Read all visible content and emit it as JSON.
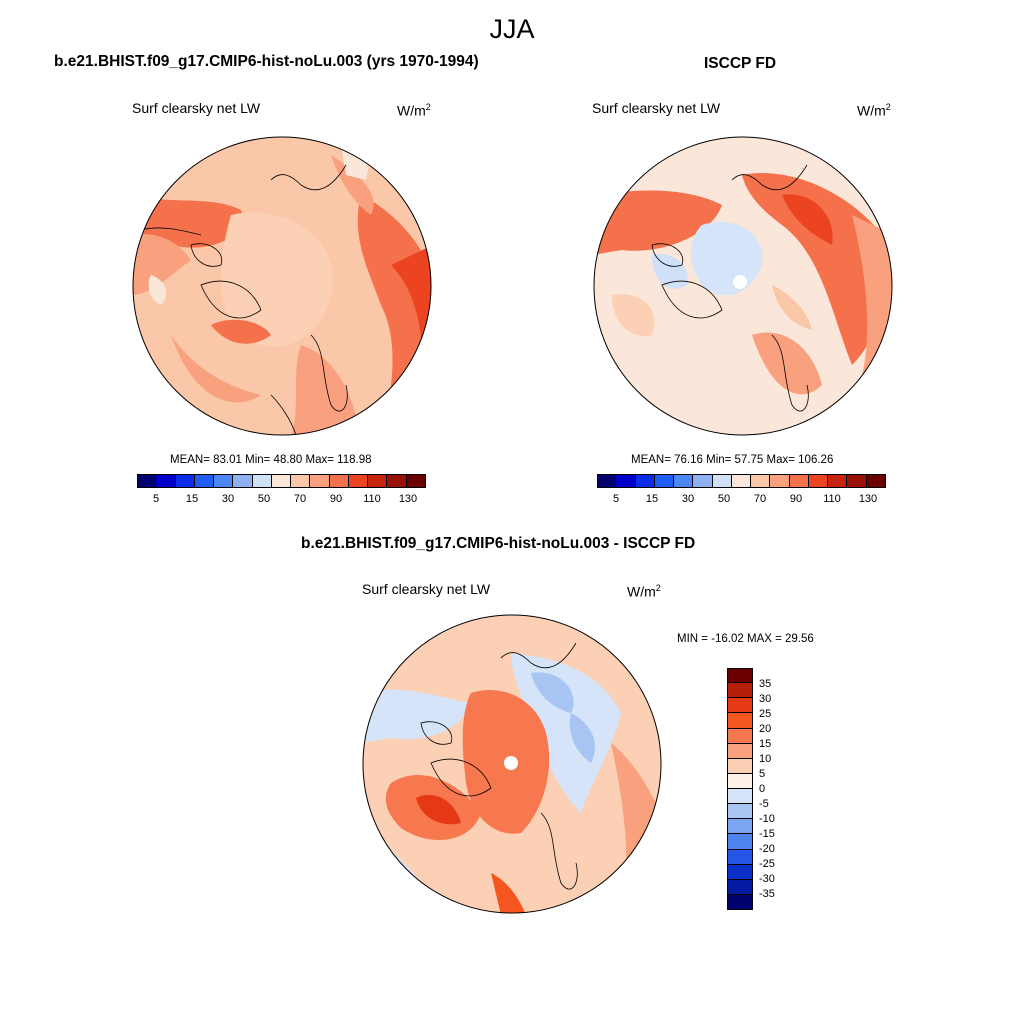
{
  "figure": {
    "season": "JJA"
  },
  "panels": {
    "model": {
      "title": "b.e21.BHIST.f09_g17.CMIP6-hist-noLu.003 (yrs 1970-1994)",
      "variable": "Surf clearsky net LW",
      "units_base": "W/m",
      "units_exp": "2",
      "stats": "MEAN=  83.01  Min=  48.80  Max= 118.98"
    },
    "obs": {
      "title": "ISCCP FD",
      "variable": "Surf clearsky net LW",
      "units_base": "W/m",
      "units_exp": "2",
      "stats": "MEAN=  76.16  Min=  57.75  Max= 106.26"
    },
    "diff": {
      "title": "b.e21.BHIST.f09_g17.CMIP6-hist-noLu.003 - ISCCP FD",
      "variable": "Surf clearsky net LW",
      "units_base": "W/m",
      "units_exp": "2",
      "stats": "MIN = -16.02 MAX =  29.56"
    }
  },
  "colorbars": {
    "absolute": {
      "colors": [
        "#02016e",
        "#0000c8",
        "#0b2de8",
        "#1f5df5",
        "#4d87f5",
        "#8fb1f2",
        "#cfe0f7",
        "#fbe6da",
        "#fbc7a9",
        "#f9a07e",
        "#f4714c",
        "#ec4321",
        "#c6240c",
        "#991007",
        "#6b0000"
      ],
      "tick_labels": [
        "5",
        "15",
        "30",
        "50",
        "70",
        "90",
        "110",
        "130"
      ]
    },
    "difference": {
      "colors": [
        "#6b0000",
        "#b51f07",
        "#e53815",
        "#f5561f",
        "#f7784e",
        "#f9a07e",
        "#fbd0b5",
        "#fdf0e6",
        "#d5e4f8",
        "#a7c4f3",
        "#7ca5f1",
        "#4f83ed",
        "#2554e6",
        "#0b2ec9",
        "#0219a0",
        "#00036e"
      ],
      "tick_labels": [
        "35",
        "30",
        "25",
        "20",
        "15",
        "10",
        "5",
        "0",
        "-5",
        "-10",
        "-15",
        "-20",
        "-25",
        "-30",
        "-35"
      ]
    }
  }
}
